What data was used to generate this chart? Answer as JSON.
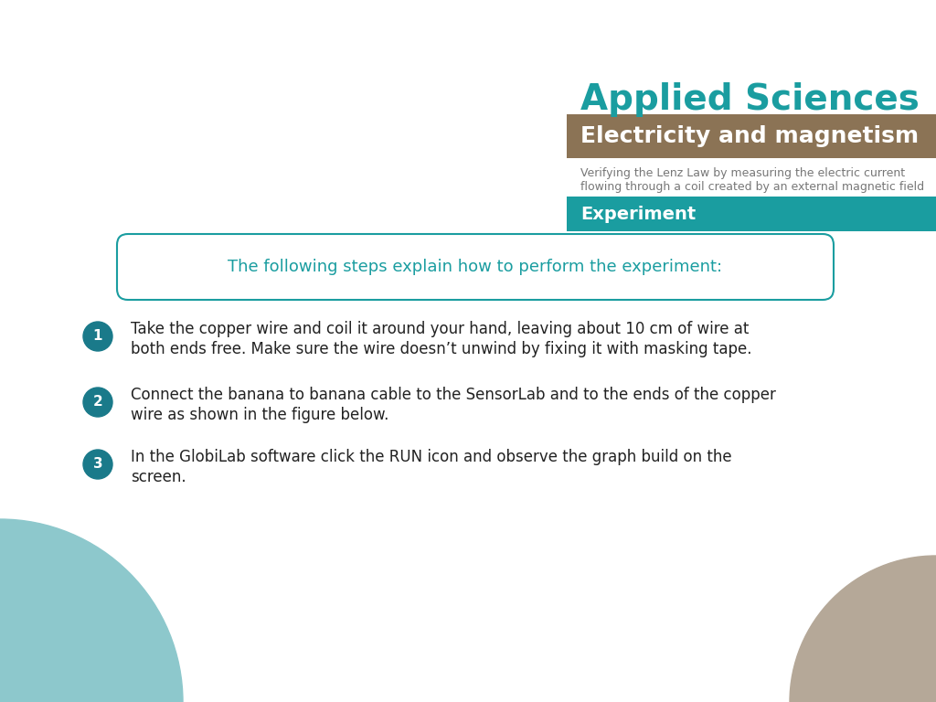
{
  "title_applied": "Applied Sciences",
  "title_applied_color": "#1a9da0",
  "subtitle_bar_color": "#8B7355",
  "subtitle_text": "Electricity and magnetism",
  "subtitle_text_color": "#ffffff",
  "description_line1": "Verifying the Lenz Law by measuring the electric current",
  "description_line2": "flowing through a coil created by an external magnetic field",
  "description_color": "#777777",
  "experiment_bar_color": "#1a9da0",
  "experiment_text": "Experiment",
  "experiment_text_color": "#ffffff",
  "box_text": "The following steps explain how to perform the experiment:",
  "box_text_color": "#1a9da0",
  "box_border_color": "#1a9da0",
  "step_circle_color": "#1a7a8a",
  "step_number_color": "#ffffff",
  "step_text_color": "#222222",
  "steps": [
    {
      "number": "1",
      "line1": "Take the copper wire and coil it around your hand, leaving about 10 cm of wire at",
      "line2": "both ends free. Make sure the wire doesn’t unwind by fixing it with masking tape."
    },
    {
      "number": "2",
      "line1": "Connect the banana to banana cable to the SensorLab and to the ends of the copper",
      "line2": "wire as shown in the figure below."
    },
    {
      "number": "3",
      "line1": "In the GlobiLab software click the RUN icon and observe the graph build on the",
      "line2": "screen."
    }
  ],
  "bg_color": "#ffffff",
  "circle_teal_color": "#8dc8cc",
  "circle_tan_color": "#b5a898",
  "fig_width": 10.24,
  "fig_height": 7.68,
  "dpi": 100
}
